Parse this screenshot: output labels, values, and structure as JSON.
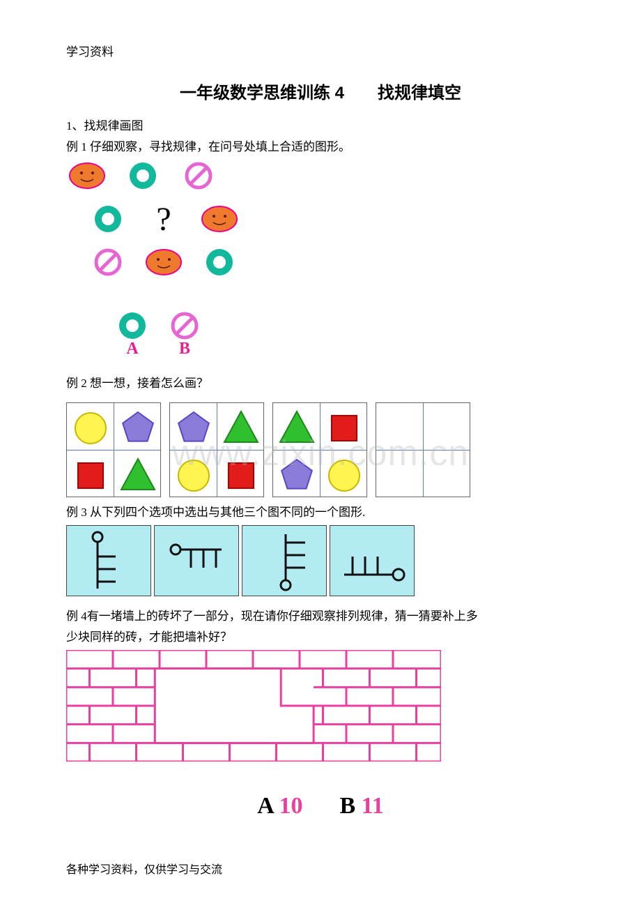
{
  "header": "学习资料",
  "footer": "各种学习资料，仅供学习与交流",
  "watermark": "www.zixin.com.cn",
  "title": "一年级数学思维训练 4　　找规律填空",
  "q1": {
    "heading": "1、找规律画图",
    "line": "例 1 仔细观察，寻找规律，在问号处填上合适的图形。",
    "colors": {
      "face_fill": "#ef7a2d",
      "face_stroke": "#ec008c",
      "ring_fill": "#12b89b",
      "no_stroke": "#e665d2"
    },
    "grid_rows": [
      [
        "face",
        "ring",
        "no"
      ],
      [
        "ring",
        "question",
        "face"
      ],
      [
        "no",
        "face",
        "ring"
      ]
    ],
    "options": [
      "ring",
      "no"
    ],
    "option_labels": [
      "A",
      "B"
    ],
    "option_label_color": "#ed1c8f"
  },
  "q2": {
    "line": "例 2  想一想，接着怎么画？",
    "colors": {
      "circle": "#fff450",
      "circle_stroke": "#c9b800",
      "pentagon": "#8a7cd8",
      "pentagon_stroke": "#5a47c4",
      "triangle": "#2fbf2f",
      "triangle_stroke": "#1a8a1a",
      "square": "#e21b1b",
      "square_stroke": "#a00"
    },
    "quads": [
      [
        "circle",
        "pentagon",
        "square",
        "triangle"
      ],
      [
        "pentagon",
        "triangle",
        "circle",
        "square"
      ],
      [
        "triangle",
        "square",
        "pentagon",
        "circle"
      ],
      [
        "blank",
        "blank",
        "blank",
        "blank"
      ]
    ]
  },
  "q3": {
    "line": "例 3  从下列四个选项中选出与其他三个图不同的一个图形.",
    "bg": "#b2ecf2",
    "stroke": "#111111"
  },
  "q4": {
    "line1": "例 4有一堵墙上的砖坏了一部分，现在请你仔细观察排列规律，猜一猜要补上多",
    "line2": "少块同样的砖，才能把墙补好？",
    "color": "#e83fa0"
  },
  "answers": {
    "a_label": "A",
    "a_val": "10",
    "b_label": "B",
    "b_val": "11",
    "num_color": "#e83fa0"
  }
}
